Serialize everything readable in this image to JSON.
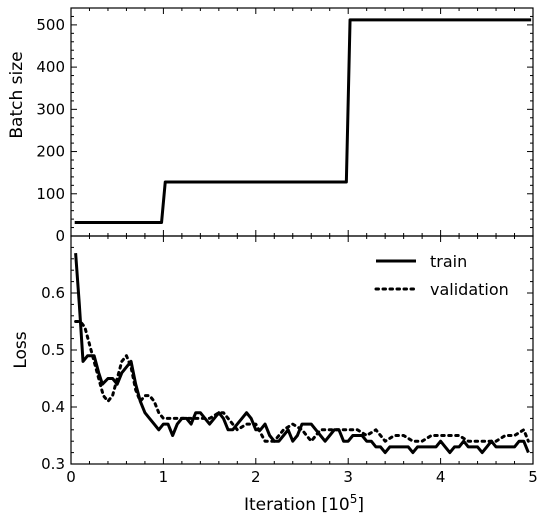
{
  "chart_data": [
    {
      "type": "line",
      "panel": "top",
      "title": "",
      "xlabel": "",
      "ylabel": "Batch size",
      "xlim": [
        0,
        5
      ],
      "ylim": [
        0,
        540
      ],
      "xticks": [
        0,
        1,
        2,
        3,
        4,
        5
      ],
      "yticks": [
        0,
        100,
        200,
        300,
        400,
        500
      ],
      "ytick_labels": [
        "0",
        "100",
        "200",
        "300",
        "400",
        "500"
      ],
      "grid": false,
      "series": [
        {
          "style": "solid",
          "color": "#000000",
          "x": [
            0.04,
            0.98,
            1.02,
            2.98,
            3.02,
            4.98
          ],
          "y": [
            32,
            32,
            128,
            128,
            512,
            512
          ]
        }
      ]
    },
    {
      "type": "line",
      "panel": "bottom",
      "title": "",
      "xlabel": "Iteration [10",
      "xlabel_sup": "5",
      "xlabel_end": "]",
      "ylabel": "Loss",
      "xlim": [
        0,
        5
      ],
      "ylim": [
        0.3,
        0.7
      ],
      "xticks": [
        0,
        1,
        2,
        3,
        4,
        5
      ],
      "xtick_labels": [
        "0",
        "1",
        "2",
        "3",
        "4",
        "5"
      ],
      "yticks": [
        0.3,
        0.4,
        0.5,
        0.6
      ],
      "ytick_labels": [
        "0.3",
        "0.4",
        "0.5",
        "0.6"
      ],
      "grid": false,
      "legend_position": "top-right",
      "series": [
        {
          "name": "train",
          "style": "solid",
          "color": "#000000",
          "x": [
            0.05,
            0.09,
            0.13,
            0.18,
            0.25,
            0.3,
            0.34,
            0.4,
            0.45,
            0.5,
            0.55,
            0.6,
            0.65,
            0.7,
            0.75,
            0.8,
            0.85,
            0.9,
            0.95,
            1.0,
            1.05,
            1.1,
            1.15,
            1.2,
            1.25,
            1.3,
            1.35,
            1.4,
            1.45,
            1.5,
            1.55,
            1.6,
            1.65,
            1.7,
            1.75,
            1.8,
            1.85,
            1.9,
            1.95,
            2.0,
            2.05,
            2.1,
            2.15,
            2.2,
            2.25,
            2.3,
            2.35,
            2.4,
            2.45,
            2.5,
            2.55,
            2.6,
            2.65,
            2.7,
            2.75,
            2.8,
            2.85,
            2.9,
            2.95,
            3.0,
            3.05,
            3.1,
            3.15,
            3.2,
            3.25,
            3.3,
            3.35,
            3.4,
            3.45,
            3.5,
            3.55,
            3.6,
            3.65,
            3.7,
            3.75,
            3.8,
            3.85,
            3.9,
            3.95,
            4.0,
            4.05,
            4.1,
            4.15,
            4.2,
            4.25,
            4.3,
            4.35,
            4.4,
            4.45,
            4.5,
            4.55,
            4.6,
            4.65,
            4.7,
            4.75,
            4.8,
            4.85,
            4.9,
            4.95
          ],
          "y": [
            0.67,
            0.58,
            0.48,
            0.49,
            0.49,
            0.46,
            0.44,
            0.45,
            0.45,
            0.44,
            0.46,
            0.47,
            0.48,
            0.44,
            0.41,
            0.39,
            0.38,
            0.37,
            0.36,
            0.37,
            0.37,
            0.35,
            0.37,
            0.38,
            0.38,
            0.37,
            0.39,
            0.39,
            0.38,
            0.37,
            0.38,
            0.39,
            0.38,
            0.36,
            0.36,
            0.37,
            0.38,
            0.39,
            0.38,
            0.36,
            0.36,
            0.37,
            0.35,
            0.34,
            0.34,
            0.35,
            0.36,
            0.34,
            0.35,
            0.37,
            0.37,
            0.37,
            0.36,
            0.35,
            0.34,
            0.35,
            0.36,
            0.36,
            0.34,
            0.34,
            0.35,
            0.35,
            0.35,
            0.34,
            0.34,
            0.33,
            0.33,
            0.32,
            0.33,
            0.33,
            0.33,
            0.33,
            0.33,
            0.32,
            0.33,
            0.33,
            0.33,
            0.33,
            0.33,
            0.34,
            0.33,
            0.32,
            0.33,
            0.33,
            0.34,
            0.33,
            0.33,
            0.33,
            0.32,
            0.33,
            0.34,
            0.33,
            0.33,
            0.33,
            0.33,
            0.33,
            0.34,
            0.34,
            0.32
          ]
        },
        {
          "name": "validation",
          "style": "dotted",
          "color": "#000000",
          "x": [
            0.05,
            0.1,
            0.15,
            0.2,
            0.25,
            0.3,
            0.35,
            0.4,
            0.45,
            0.5,
            0.55,
            0.6,
            0.65,
            0.7,
            0.75,
            0.8,
            0.85,
            0.9,
            0.95,
            1.0,
            1.1,
            1.2,
            1.3,
            1.4,
            1.5,
            1.6,
            1.65,
            1.7,
            1.8,
            1.9,
            2.0,
            2.1,
            2.2,
            2.3,
            2.4,
            2.5,
            2.6,
            2.7,
            2.8,
            2.9,
            3.0,
            3.1,
            3.2,
            3.3,
            3.4,
            3.5,
            3.6,
            3.7,
            3.8,
            3.9,
            4.0,
            4.1,
            4.2,
            4.3,
            4.4,
            4.5,
            4.6,
            4.7,
            4.8,
            4.9,
            4.95
          ],
          "y": [
            0.55,
            0.55,
            0.54,
            0.51,
            0.48,
            0.45,
            0.42,
            0.41,
            0.42,
            0.45,
            0.48,
            0.49,
            0.47,
            0.43,
            0.41,
            0.42,
            0.42,
            0.41,
            0.39,
            0.38,
            0.38,
            0.38,
            0.38,
            0.38,
            0.38,
            0.39,
            0.39,
            0.38,
            0.36,
            0.37,
            0.37,
            0.34,
            0.34,
            0.36,
            0.37,
            0.36,
            0.34,
            0.36,
            0.36,
            0.36,
            0.36,
            0.36,
            0.35,
            0.36,
            0.34,
            0.35,
            0.35,
            0.34,
            0.34,
            0.35,
            0.35,
            0.35,
            0.35,
            0.34,
            0.34,
            0.34,
            0.34,
            0.35,
            0.35,
            0.36,
            0.34
          ]
        }
      ]
    }
  ]
}
